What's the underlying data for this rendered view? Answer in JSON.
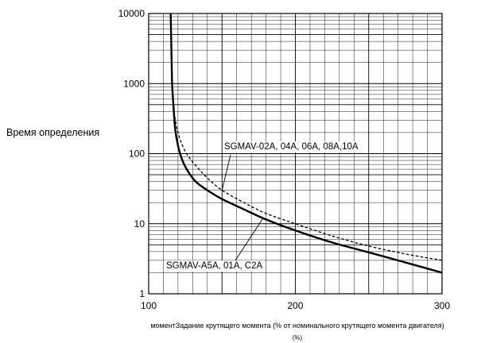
{
  "chart_data": {
    "type": "line",
    "title": "",
    "ylabel": "Время определения",
    "xlabel": "моментЗадание крутящего момента (% от номинального крутящего момента двигателя)",
    "xlabel_unit": "(%)",
    "x_scale": "linear",
    "y_scale": "log",
    "xlim": [
      100,
      300
    ],
    "ylim": [
      1,
      10000
    ],
    "grid": true,
    "legend": "none",
    "x_ticks": [
      "100",
      "200",
      "300"
    ],
    "y_ticks": [
      "1",
      "10",
      "100",
      "1000",
      "10000"
    ],
    "series": [
      {
        "name": "SGMAV-A5A, 01A, C2A",
        "style": "solid",
        "color": "#000000",
        "x": [
          115,
          115.5,
          116,
          117,
          118,
          120,
          123,
          127,
          132,
          140,
          150,
          165,
          180,
          200,
          225,
          250,
          275,
          300
        ],
        "y": [
          10000,
          3000,
          1000,
          450,
          230,
          130,
          80,
          55,
          40,
          30,
          22.5,
          16,
          11.5,
          8,
          5.4,
          3.9,
          2.8,
          2.0
        ]
      },
      {
        "name": "SGMAV-02A, 04A, 06A, 08A,10A",
        "style": "dashed",
        "color": "#000000",
        "x": [
          116,
          117,
          118,
          120,
          123,
          127,
          132,
          140,
          150,
          165,
          180,
          200,
          225,
          250,
          275,
          300
        ],
        "y": [
          1000,
          480,
          320,
          200,
          130,
          92,
          68,
          45,
          30,
          20,
          14,
          10,
          6.7,
          4.8,
          3.7,
          3.0
        ]
      }
    ],
    "annotations": [
      {
        "text": "SGMAV-02A, 04A, 06A, 08A,10A",
        "series": 1
      },
      {
        "text": "SGMAV-A5A, 01A, C2A",
        "series": 0
      }
    ]
  }
}
